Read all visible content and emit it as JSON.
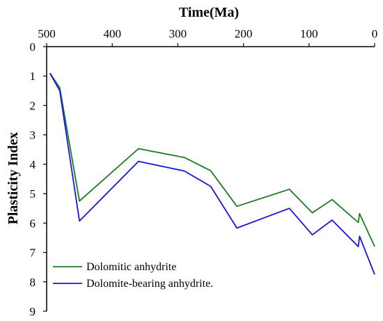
{
  "chart_data": {
    "type": "line",
    "xlabel": "Time(Ma)",
    "ylabel": "Plasticity Index",
    "xlim": [
      500,
      0
    ],
    "ylim": [
      0,
      9
    ],
    "x_ticks": [
      "500",
      "400",
      "300",
      "200",
      "100",
      "0"
    ],
    "y_ticks": [
      "0",
      "1",
      "2",
      "3",
      "4",
      "5",
      "6",
      "7",
      "8",
      "9"
    ],
    "x_axis_position": "top",
    "grid": false,
    "legend_position": "bottom-left",
    "series": [
      {
        "name": "Dolomitic anhydrite",
        "color": "#1e7a1e",
        "x": [
          495,
          480,
          450,
          360,
          290,
          250,
          210,
          130,
          95,
          65,
          25,
          23,
          0
        ],
        "y": [
          0.9,
          1.4,
          5.25,
          3.47,
          3.77,
          4.22,
          5.43,
          4.85,
          5.65,
          5.2,
          5.98,
          5.68,
          6.8
        ]
      },
      {
        "name": "Dolomite-bearing anhydrite.",
        "color": "#1414e0",
        "x": [
          495,
          480,
          450,
          360,
          290,
          250,
          210,
          130,
          95,
          65,
          25,
          23,
          0
        ],
        "y": [
          0.9,
          1.5,
          5.93,
          3.9,
          4.23,
          4.75,
          6.17,
          5.5,
          6.4,
          5.9,
          6.8,
          6.45,
          7.75
        ]
      }
    ]
  }
}
